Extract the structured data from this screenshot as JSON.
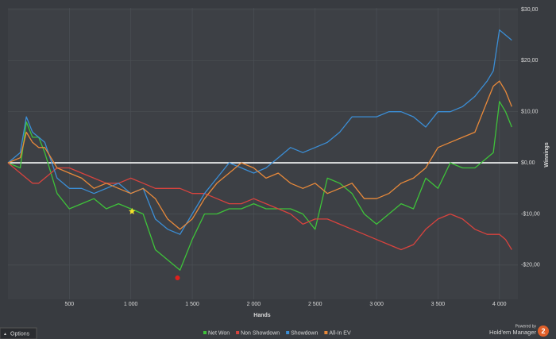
{
  "chart_data": {
    "type": "line",
    "x_label": "Hands",
    "y_label": "Winnings",
    "x": [
      0,
      100,
      150,
      200,
      250,
      300,
      400,
      500,
      600,
      700,
      800,
      900,
      1000,
      1100,
      1200,
      1300,
      1400,
      1500,
      1600,
      1700,
      1800,
      1900,
      2000,
      2100,
      2200,
      2300,
      2400,
      2500,
      2600,
      2700,
      2800,
      2900,
      3000,
      3100,
      3200,
      3300,
      3400,
      3500,
      3600,
      3700,
      3800,
      3900,
      3950,
      4000,
      4050,
      4100
    ],
    "series": [
      {
        "name": "Net Won",
        "color": "#3ec23a",
        "values": [
          0,
          -1,
          8,
          5,
          5,
          2,
          -6,
          -9,
          -8,
          -7,
          -9,
          -8,
          -9,
          -10,
          -17,
          -19,
          -21,
          -15,
          -10,
          -10,
          -9,
          -9,
          -8,
          -9,
          -9,
          -9,
          -10,
          -13,
          -3,
          -4,
          -6,
          -10,
          -12,
          -10,
          -8,
          -9,
          -3,
          -5,
          0,
          -1,
          -1,
          1,
          2,
          12,
          10,
          7
        ]
      },
      {
        "name": "Non Showdown",
        "color": "#d8433e",
        "values": [
          0,
          -2,
          -3,
          -4,
          -4,
          -3,
          -1,
          -1,
          -2,
          -3,
          -4,
          -4,
          -3,
          -4,
          -5,
          -5,
          -5,
          -6,
          -6,
          -7,
          -8,
          -8,
          -7,
          -8,
          -9,
          -10,
          -12,
          -11,
          -11,
          -12,
          -13,
          -14,
          -15,
          -16,
          -17,
          -16,
          -13,
          -11,
          -10,
          -11,
          -13,
          -14,
          -14,
          -14,
          -15,
          -17
        ]
      },
      {
        "name": "Showdown",
        "color": "#3b8ed6",
        "values": [
          0,
          2,
          9,
          6,
          5,
          4,
          -3,
          -5,
          -5,
          -6,
          -5,
          -4,
          -6,
          -5,
          -11,
          -13,
          -14,
          -10,
          -6,
          -3,
          0,
          -1,
          -2,
          -1,
          1,
          3,
          2,
          3,
          4,
          6,
          9,
          9,
          9,
          10,
          10,
          9,
          7,
          10,
          10,
          11,
          13,
          16,
          18,
          26,
          25,
          24
        ]
      },
      {
        "name": "All-In EV",
        "color": "#e8893a",
        "values": [
          0,
          1,
          6,
          4,
          3,
          3,
          -1,
          -2,
          -3,
          -5,
          -4,
          -5,
          -6,
          -5,
          -7,
          -11,
          -13,
          -11,
          -7,
          -4,
          -2,
          0,
          -1,
          -3,
          -2,
          -4,
          -5,
          -4,
          -6,
          -5,
          -4,
          -7,
          -7,
          -6,
          -4,
          -3,
          -1,
          3,
          4,
          5,
          6,
          12,
          15,
          16,
          14,
          11
        ]
      }
    ],
    "markers": [
      {
        "x": 1010,
        "y": -9.5,
        "color": "#f5e12a",
        "shape": "star"
      },
      {
        "x": 1380,
        "y": -22.5,
        "color": "#e0201c",
        "shape": "circle"
      }
    ],
    "xlim": [
      0,
      4150
    ],
    "ylim": [
      -26.7,
      30.3
    ],
    "xticks": [
      500,
      {
        "value": 1000,
        "label": "1 000"
      },
      {
        "value": 1500,
        "label": "1 500"
      },
      {
        "value": 2000,
        "label": "2 000"
      },
      {
        "value": 2500,
        "label": "2 500"
      },
      {
        "value": 3000,
        "label": "3 000"
      },
      {
        "value": 3500,
        "label": "3 500"
      },
      {
        "value": 4000,
        "label": "4 000"
      }
    ],
    "yticks": [
      {
        "value": -20,
        "label": "-$20,00"
      },
      {
        "value": -10,
        "label": "-$10,00"
      },
      {
        "value": 0,
        "label": "$0,00"
      },
      {
        "value": 10,
        "label": "$10,00"
      },
      {
        "value": 20,
        "label": "$20,00"
      },
      {
        "value": 30,
        "label": "$30,00"
      }
    ],
    "grid": true,
    "legend": "bottom"
  },
  "ui": {
    "options": "Options",
    "powered_by": "Powered by",
    "brand": "Hold'em Manager",
    "brand_number": "2"
  }
}
